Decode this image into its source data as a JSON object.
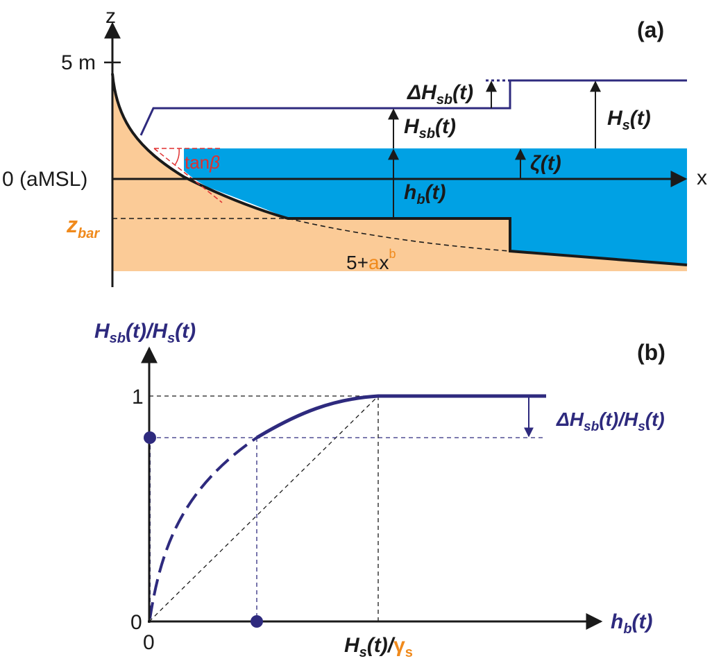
{
  "panel_a": {
    "label": "(a)",
    "z_axis": "z",
    "x_axis": "x",
    "tick_5m": "5 m",
    "tick_0": "0 (aMSL)",
    "zbar": {
      "main": "z",
      "sub": "bar"
    },
    "tanbeta": {
      "main": "tan",
      "greek": "β"
    },
    "profile_eq": {
      "pre": "5+",
      "a": "a",
      "x": "x",
      "b": "b"
    },
    "Hs": {
      "main": "H",
      "sub": "s",
      "tail": "(t)"
    },
    "Hsb": {
      "main": "H",
      "sub": "sb",
      "tail": "(t)"
    },
    "dHsb": {
      "main": "ΔH",
      "sub": "sb",
      "tail": "(t)"
    },
    "zeta": "ζ(t)",
    "hb": {
      "main": "h",
      "sub": "b",
      "tail": "(t)"
    }
  },
  "panel_b": {
    "label": "(b)",
    "y_title": {
      "a": "H",
      "a_sub": "sb",
      "b": "(t)/H",
      "b_sub": "s",
      "c": "(t)"
    },
    "x_title": {
      "main": "h",
      "sub": "b",
      "tail": "(t)"
    },
    "tick_y1": "1",
    "tick_y0": "0",
    "tick_x0": "0",
    "x_mark": {
      "main": "H",
      "sub": "s",
      "mid": "(t)/",
      "gamma": "γ",
      "gsub": "s"
    },
    "ratio_label": {
      "a": "ΔH",
      "a_sub": "sb",
      "b": "(t)/H",
      "b_sub": "s",
      "c": "(t)"
    }
  },
  "colors": {
    "sand": "#fbcb97",
    "water": "#00a1e4",
    "navy": "#2e2a7e",
    "orange": "#f08a1c",
    "red": "#e03030"
  }
}
